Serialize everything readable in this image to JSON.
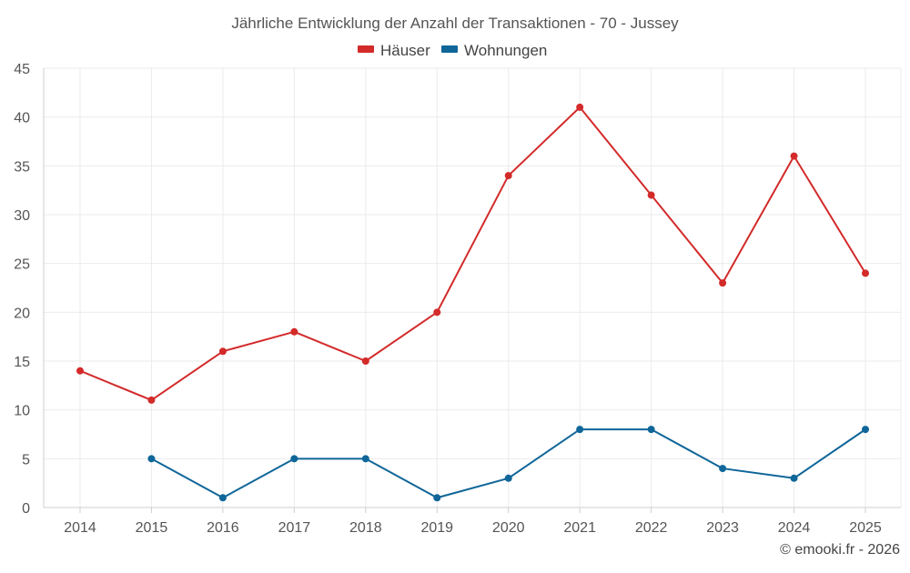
{
  "chart_data": {
    "type": "line",
    "title": "Jährliche Entwicklung der Anzahl der Transaktionen - 70 - Jussey",
    "categories": [
      "2014",
      "2015",
      "2016",
      "2017",
      "2018",
      "2019",
      "2020",
      "2021",
      "2022",
      "2023",
      "2024",
      "2025"
    ],
    "series": [
      {
        "name": "Häuser",
        "color": "#d32a2a",
        "values": [
          14,
          11,
          16,
          18,
          15,
          20,
          34,
          41,
          32,
          23,
          36,
          24
        ]
      },
      {
        "name": "Wohnungen",
        "color": "#0f6699",
        "values": [
          null,
          5,
          1,
          5,
          5,
          1,
          3,
          8,
          8,
          4,
          3,
          8
        ]
      }
    ],
    "ylim": [
      0,
      45
    ],
    "yticks": [
      0,
      5,
      10,
      15,
      20,
      25,
      30,
      35,
      40,
      45
    ],
    "ytick_labels": [
      "0",
      "5",
      "10",
      "15",
      "20",
      "25",
      "30",
      "35",
      "40",
      "45"
    ],
    "xlabel": "",
    "ylabel": "",
    "grid": true,
    "legend_position": "top-center"
  },
  "credit": "© emooki.fr - 2026"
}
